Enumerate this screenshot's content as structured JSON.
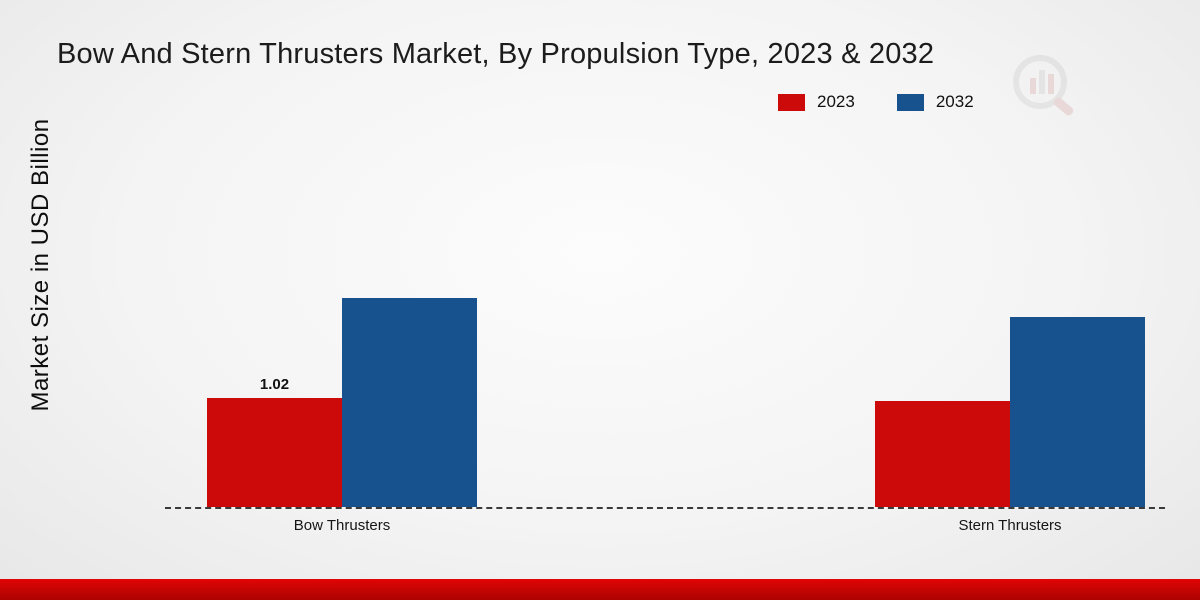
{
  "title": "Bow And Stern Thrusters Market, By Propulsion Type, 2023 & 2032",
  "ylabel": "Market Size in USD Billion",
  "legend": [
    {
      "label": "2023",
      "color": "#cc0a0a"
    },
    {
      "label": "2032",
      "color": "#17528f"
    }
  ],
  "accent_footer_color": "#c00303",
  "chart_data": {
    "type": "bar",
    "title": "Bow And Stern Thrusters Market, By Propulsion Type, 2023 & 2032",
    "xlabel": "",
    "ylabel": "Market Size in USD Billion",
    "categories": [
      "Bow Thrusters",
      "Stern Thrusters"
    ],
    "series": [
      {
        "name": "2023",
        "color": "#cc0a0a",
        "values": [
          1.02,
          0.99
        ]
      },
      {
        "name": "2032",
        "color": "#17528f",
        "values": [
          1.95,
          1.77
        ]
      }
    ],
    "annotations": [
      {
        "text": "1.02",
        "category_index": 0,
        "series_index": 0
      }
    ],
    "ylim": [
      0,
      3.8
    ],
    "grid": false,
    "legend_position": "top-right",
    "baseline_style": "dashed"
  }
}
